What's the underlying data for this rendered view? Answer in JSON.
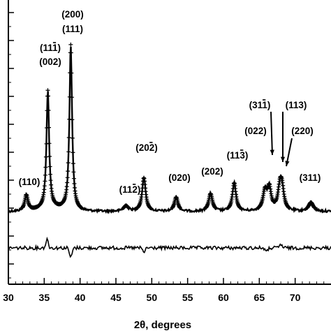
{
  "chart_data": {
    "type": "line",
    "title": "",
    "xlabel": "2θ, degrees",
    "ylabel": "",
    "xlim": [
      30,
      75
    ],
    "xticks": [
      30,
      35,
      40,
      45,
      50,
      55,
      60,
      65,
      70
    ],
    "x_tick_labels": [
      "30",
      "35",
      "40",
      "45",
      "50",
      "55",
      "60",
      "65",
      "70"
    ],
    "grid": false,
    "legend": "none",
    "line_color": "#000000",
    "series": [
      {
        "role": "observed",
        "style": "crosses",
        "baseline": 0.11,
        "peaks": [
          {
            "x": 32.5,
            "height": 0.09,
            "width": 0.28
          },
          {
            "x": 35.5,
            "height": 0.67,
            "width": 0.22
          },
          {
            "x": 38.7,
            "height": 0.94,
            "width": 0.22
          },
          {
            "x": 46.4,
            "height": 0.03,
            "width": 0.4
          },
          {
            "x": 48.9,
            "height": 0.19,
            "width": 0.3
          },
          {
            "x": 53.4,
            "height": 0.08,
            "width": 0.3
          },
          {
            "x": 58.2,
            "height": 0.1,
            "width": 0.32
          },
          {
            "x": 61.5,
            "height": 0.16,
            "width": 0.3
          },
          {
            "x": 65.8,
            "height": 0.11,
            "width": 0.35
          },
          {
            "x": 66.4,
            "height": 0.12,
            "width": 0.3
          },
          {
            "x": 67.9,
            "height": 0.14,
            "width": 0.35
          },
          {
            "x": 68.2,
            "height": 0.09,
            "width": 0.3
          },
          {
            "x": 72.2,
            "height": 0.05,
            "width": 0.4
          }
        ]
      },
      {
        "role": "difference",
        "style": "line",
        "baseline": 0.0,
        "features": [
          {
            "x": 35.4,
            "amplitude": 0.06
          },
          {
            "x": 38.7,
            "amplitude": -0.07
          },
          {
            "x": 48.9,
            "amplitude": -0.03
          },
          {
            "x": 66.0,
            "amplitude": -0.03
          },
          {
            "x": 68.0,
            "amplitude": 0.025
          }
        ]
      }
    ],
    "annotations": [
      {
        "label": "(110)",
        "x": 32.5
      },
      {
        "label": "(111)",
        "x": 35.5,
        "overbar": "1"
      },
      {
        "label": "(002)",
        "x": 35.5
      },
      {
        "label": "(200)",
        "x": 38.7
      },
      {
        "label": "(111)",
        "x": 38.7
      },
      {
        "label": "(112)",
        "x": 46.4,
        "overbar": "2"
      },
      {
        "label": "(202)",
        "x": 48.9,
        "overbar": "2"
      },
      {
        "label": "(020)",
        "x": 53.4
      },
      {
        "label": "(202)",
        "x": 58.2
      },
      {
        "label": "(113)",
        "x": 61.5,
        "overbar": "3"
      },
      {
        "label": "(022)",
        "x": 65.8
      },
      {
        "label": "(311)",
        "x": 66.4,
        "overbar": "1"
      },
      {
        "label": "(113)",
        "x": 67.9
      },
      {
        "label": "(220)",
        "x": 68.2
      },
      {
        "label": "(311)",
        "x": 72.2
      }
    ]
  }
}
